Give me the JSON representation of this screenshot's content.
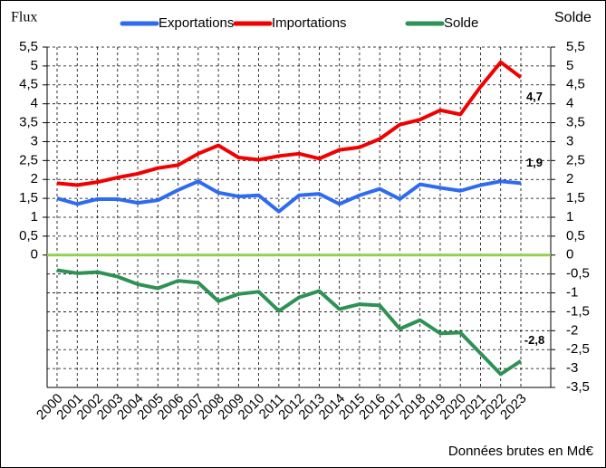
{
  "chart_data": {
    "type": "line",
    "left_axis_title": "Flux",
    "right_axis_title": "Solde",
    "note": "Données brutes en Md€",
    "categories": [
      "2000",
      "2001",
      "2002",
      "2003",
      "2004",
      "2005",
      "2006",
      "2007",
      "2008",
      "2009",
      "2010",
      "2011",
      "2012",
      "2013",
      "2014",
      "2015",
      "2016",
      "2017",
      "2018",
      "2019",
      "2020",
      "2021",
      "2022",
      "2023"
    ],
    "series": [
      {
        "name": "Exportations",
        "color": "#2e6bf0",
        "values": [
          1.5,
          1.35,
          1.48,
          1.48,
          1.38,
          1.45,
          1.72,
          1.95,
          1.65,
          1.55,
          1.58,
          1.15,
          1.58,
          1.62,
          1.35,
          1.58,
          1.75,
          1.48,
          1.87,
          1.78,
          1.7,
          1.85,
          1.95,
          1.9
        ],
        "value_labels": [
          null,
          null,
          null,
          null,
          null,
          null,
          null,
          null,
          null,
          null,
          null,
          null,
          null,
          null,
          null,
          null,
          null,
          null,
          null,
          null,
          null,
          null,
          null,
          "1,9"
        ]
      },
      {
        "name": "Importations",
        "color": "#f00000",
        "values": [
          1.9,
          1.85,
          1.93,
          2.05,
          2.15,
          2.3,
          2.38,
          2.68,
          2.9,
          2.58,
          2.52,
          2.62,
          2.68,
          2.55,
          2.78,
          2.85,
          3.07,
          3.45,
          3.58,
          3.83,
          3.72,
          4.45,
          5.1,
          4.7
        ],
        "value_labels": [
          null,
          null,
          null,
          null,
          null,
          null,
          null,
          null,
          null,
          null,
          null,
          null,
          null,
          null,
          null,
          null,
          null,
          null,
          null,
          null,
          null,
          null,
          null,
          "4,7"
        ]
      },
      {
        "name": "Solde",
        "color": "#2e9155",
        "axis": "y2",
        "values": [
          -0.4,
          -0.48,
          -0.45,
          -0.57,
          -0.77,
          -0.88,
          -0.68,
          -0.73,
          -1.22,
          -1.03,
          -0.97,
          -1.48,
          -1.12,
          -0.95,
          -1.43,
          -1.3,
          -1.33,
          -1.95,
          -1.72,
          -2.07,
          -2.05,
          -2.6,
          -3.15,
          -2.8
        ],
        "value_labels": [
          null,
          null,
          null,
          null,
          null,
          null,
          null,
          null,
          null,
          null,
          null,
          null,
          null,
          null,
          null,
          null,
          null,
          null,
          null,
          null,
          null,
          null,
          null,
          "-2,8"
        ]
      }
    ],
    "ylim": [
      -3.5,
      5.5
    ],
    "yticks": [
      0,
      {
        "value": 0.5,
        "label": "0,5"
      },
      1,
      {
        "value": 1.5,
        "label": "1,5"
      },
      2,
      {
        "value": 2.5,
        "label": "2,5"
      },
      3,
      {
        "value": 3.5,
        "label": "3,5"
      },
      4,
      {
        "value": 4.5,
        "label": "4,5"
      },
      5,
      {
        "value": 5.5,
        "label": "5,5"
      }
    ],
    "y2lim": [
      -3.5,
      5.5
    ],
    "y2ticks": [
      {
        "value": -3.5,
        "label": "-3,5"
      },
      -3,
      {
        "value": -2.5,
        "label": "-2,5"
      },
      -2,
      {
        "value": -1.5,
        "label": "-1,5"
      },
      -1,
      {
        "value": -0.5,
        "label": "-0,5"
      },
      0,
      {
        "value": 0.5,
        "label": "0,5"
      },
      1,
      {
        "value": 1.5,
        "label": "1,5"
      },
      2,
      {
        "value": 2.5,
        "label": "2,5"
      },
      3,
      {
        "value": 3.5,
        "label": "3,5"
      },
      4,
      {
        "value": 4.5,
        "label": "4,5"
      },
      5,
      {
        "value": 5.5,
        "label": "5,5"
      }
    ],
    "zero_line_color": "#92d050",
    "right_axis_color": "#1a9a3a",
    "grid": true,
    "legend": "top"
  }
}
